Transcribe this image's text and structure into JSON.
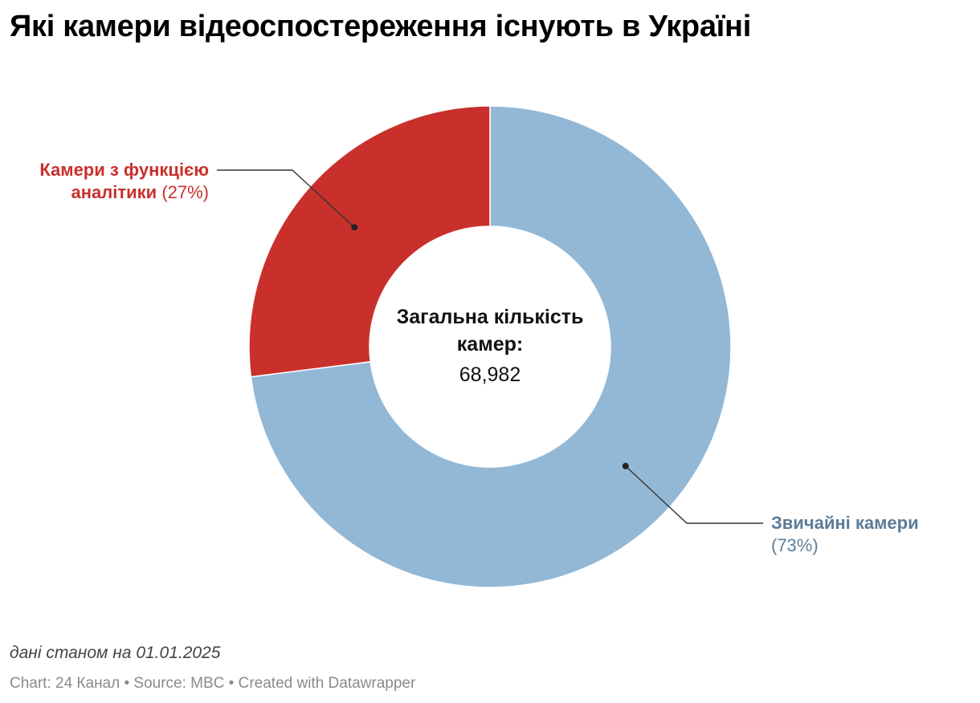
{
  "header": {
    "title": "Які камери відеоспостереження існують в Україні"
  },
  "chart_data": {
    "type": "pie",
    "variant": "donut",
    "categories": [
      "Звичайні камери",
      "Камери з функцією аналітики"
    ],
    "values": [
      73,
      27
    ],
    "unit": "%",
    "colors": [
      "#93b8d6",
      "#c9302c"
    ],
    "labels": [
      {
        "name": "Звичайні камери",
        "pct": "(73%)"
      },
      {
        "name_lines": [
          "Камери з функцією",
          "аналітики"
        ],
        "pct": "(27%)"
      }
    ],
    "center_label": "Загальна кількість камер:",
    "center_value": "68,982"
  },
  "notes": "дані станом на 01.01.2025",
  "footer": "Chart: 24 Канал • Source: MBC • Created with Datawrapper"
}
